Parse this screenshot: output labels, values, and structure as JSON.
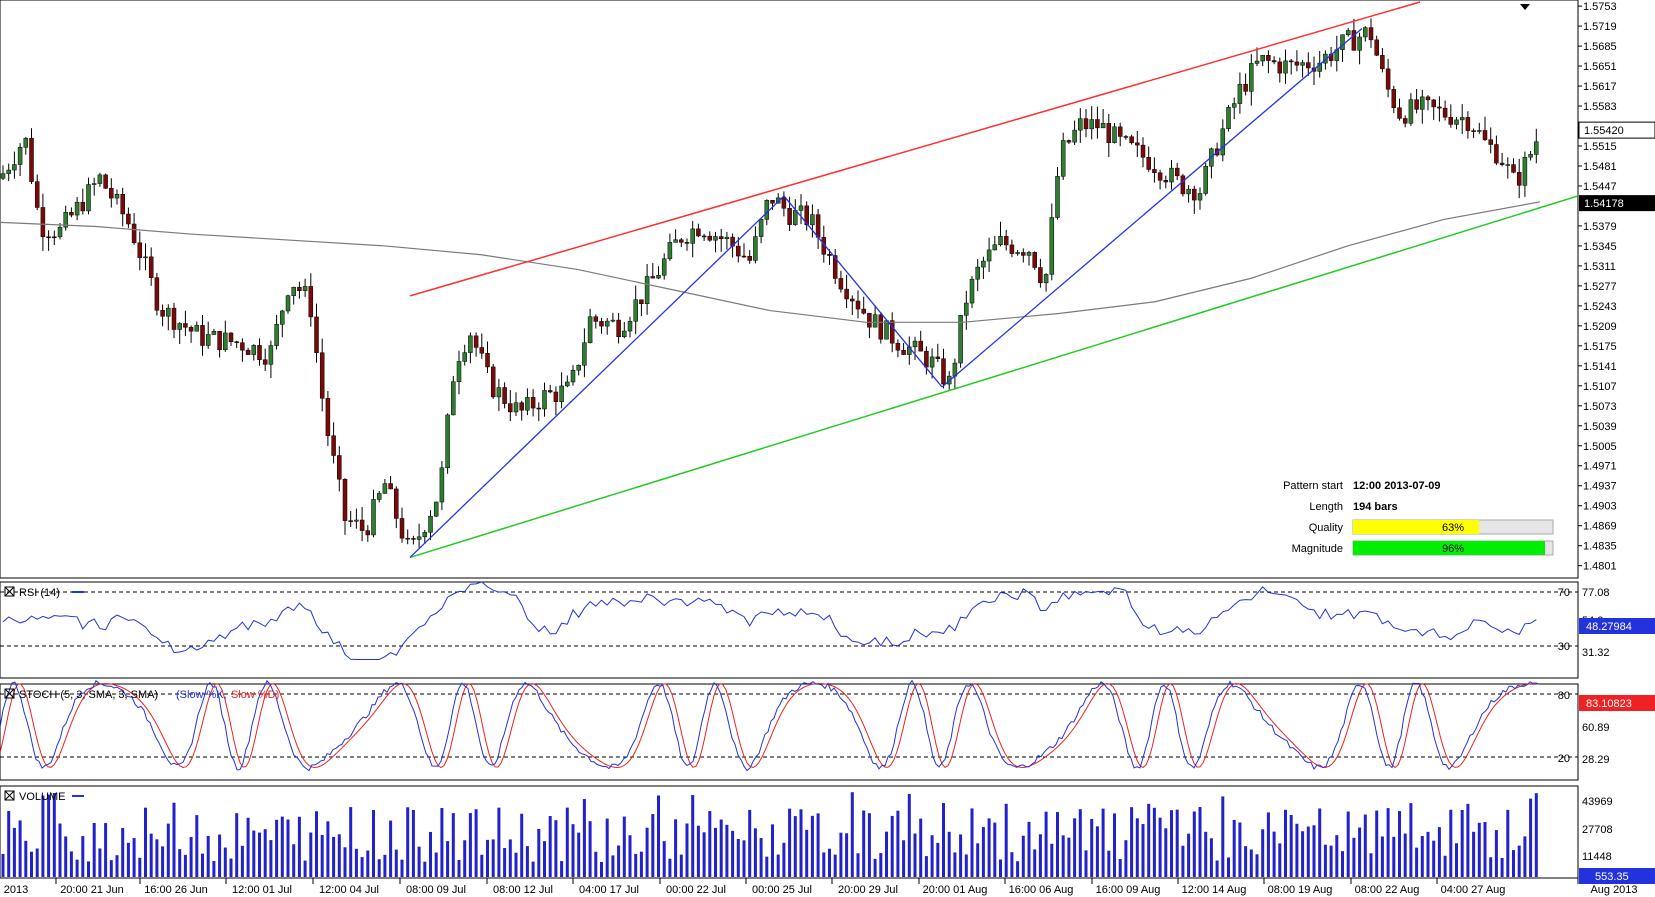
{
  "colors": {
    "bull": "#2e7d32",
    "bear": "#7a0a0a",
    "resistance": "#ff3030",
    "support": "#22cc22",
    "zigzag": "#2233ee",
    "ma": "#7a7a7a",
    "rsi": "#2233dd",
    "stoch_k": "#2233dd",
    "stoch_d": "#ee2222",
    "volume": "#2222cc",
    "quality": "#ffff00",
    "magnitude": "#00ee00"
  },
  "price_axis": {
    "labels": [
      "1.5753",
      "1.5719",
      "1.5685",
      "1.5651",
      "1.5617",
      "1.5583",
      "1.5515",
      "1.5481",
      "1.5447",
      "1.5379",
      "1.5345",
      "1.5311",
      "1.5277",
      "1.5243",
      "1.5209",
      "1.5175",
      "1.5141",
      "1.5107",
      "1.5073",
      "1.5039",
      "1.5005",
      "1.4971",
      "1.4937",
      "1.4903",
      "1.4869",
      "1.4835",
      "1.4801"
    ],
    "last_price": "1.55420",
    "support_price": "1.54178"
  },
  "time_axis": {
    "labels": [
      "2013",
      "20:00 21 Jun",
      "16:00 26 Jun",
      "12:00 01 Jul",
      "12:00 04 Jul",
      "08:00 09 Jul",
      "08:00 12 Jul",
      "04:00 17 Jul",
      "00:00 22 Jul",
      "00:00 25 Jul",
      "20:00 29 Jul",
      "20:00 01 Aug",
      "16:00 06 Aug",
      "16:00 09 Aug",
      "12:00 14 Aug",
      "08:00 19 Aug",
      "08:00 22 Aug",
      "04:00 27 Aug",
      "Aug 2013"
    ]
  },
  "pattern_info": {
    "start_label": "Pattern start",
    "start_value": "12:00 2013-07-09",
    "length_label": "Length",
    "length_value": "194 bars",
    "quality_label": "Quality",
    "quality_value": "63%",
    "quality_fraction": 0.63,
    "magnitude_label": "Magnitude",
    "magnitude_value": "96%",
    "magnitude_fraction": 0.96
  },
  "rsi": {
    "title": "RSI (14)",
    "axis_labels": [
      "77.08",
      "54.2",
      "31.32"
    ],
    "level_labels": [
      "70",
      "30"
    ],
    "last_value": "48.27984"
  },
  "stoch": {
    "title": "STOCH (5, 3, SMA, 3, SMA)",
    "k_label": "(Slow %K,",
    "d_label": "Slow %D)",
    "axis_labels": [
      "60.89",
      "28.29"
    ],
    "level_labels": [
      "80",
      "20"
    ],
    "last_value": "83.10823"
  },
  "volume": {
    "title": "VOLUME",
    "axis_labels": [
      "43969",
      "27708",
      "11448"
    ],
    "last_value": "553.35"
  },
  "chart_data": {
    "type": "candlestick",
    "symbol_series": "price",
    "ylim": [
      1.478,
      1.576
    ],
    "pattern": "rising wedge / channel",
    "zigzag_points": [
      {
        "x": "08:00 09 Jul",
        "y": 1.4815
      },
      {
        "x": "23 Jul",
        "y": 1.543
      },
      {
        "x": "30 Jul",
        "y": 1.5105
      },
      {
        "x": "19 Aug",
        "y": 1.5715
      }
    ],
    "resistance_line": [
      {
        "x": "09 Jul",
        "y": 1.526
      },
      {
        "x": "21 Aug",
        "y": 1.576
      }
    ],
    "support_line": [
      {
        "x": "09 Jul",
        "y": 1.4815
      },
      {
        "x": "29 Aug",
        "y": 1.543
      }
    ],
    "moving_average_points": [
      1.5385,
      1.5378,
      1.5365,
      1.5355,
      1.5345,
      1.533,
      1.5305,
      1.527,
      1.5235,
      1.5215,
      1.5215,
      1.523,
      1.525,
      1.529,
      1.5345,
      1.539,
      1.542
    ]
  }
}
